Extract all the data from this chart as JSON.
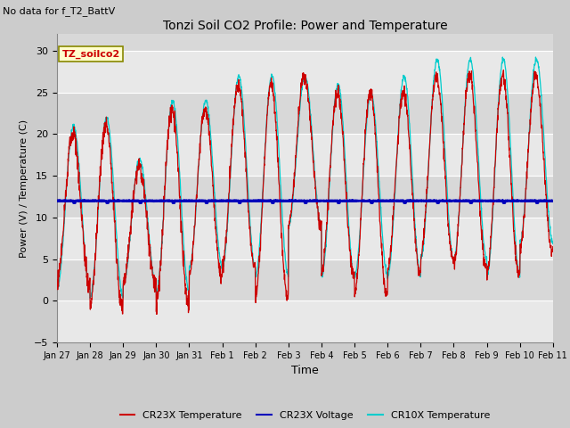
{
  "title": "Tonzi Soil CO2 Profile: Power and Temperature",
  "subtitle": "No data for f_T2_BattV",
  "xlabel": "Time",
  "ylabel": "Power (V) / Temperature (C)",
  "ylim": [
    -5,
    32
  ],
  "yticks": [
    -5,
    0,
    5,
    10,
    15,
    20,
    25,
    30
  ],
  "voltage_value": 12.0,
  "fig_bg_color": "#cccccc",
  "plot_bg_light": "#e8e8e8",
  "plot_bg_dark": "#d8d8d8",
  "cr23x_temp_color": "#cc0000",
  "cr23x_volt_color": "#0000bb",
  "cr10x_temp_color": "#00cccc",
  "annotation_text": "TZ_soilco2",
  "annotation_color": "#cc0000",
  "annotation_bg": "#ffffcc",
  "annotation_border": "#888800",
  "tick_labels": [
    "Jan 27",
    "Jan 28",
    "Jan 29",
    "Jan 30",
    "Jan 31",
    "Feb 1",
    "Feb 2",
    "Feb 3",
    "Feb 4",
    "Feb 5",
    "Feb 6",
    "Feb 7",
    "Feb 8",
    "Feb 9",
    "Feb 10",
    "Feb 11"
  ],
  "legend_labels": [
    "CR23X Temperature",
    "CR23X Voltage",
    "CR10X Temperature"
  ]
}
